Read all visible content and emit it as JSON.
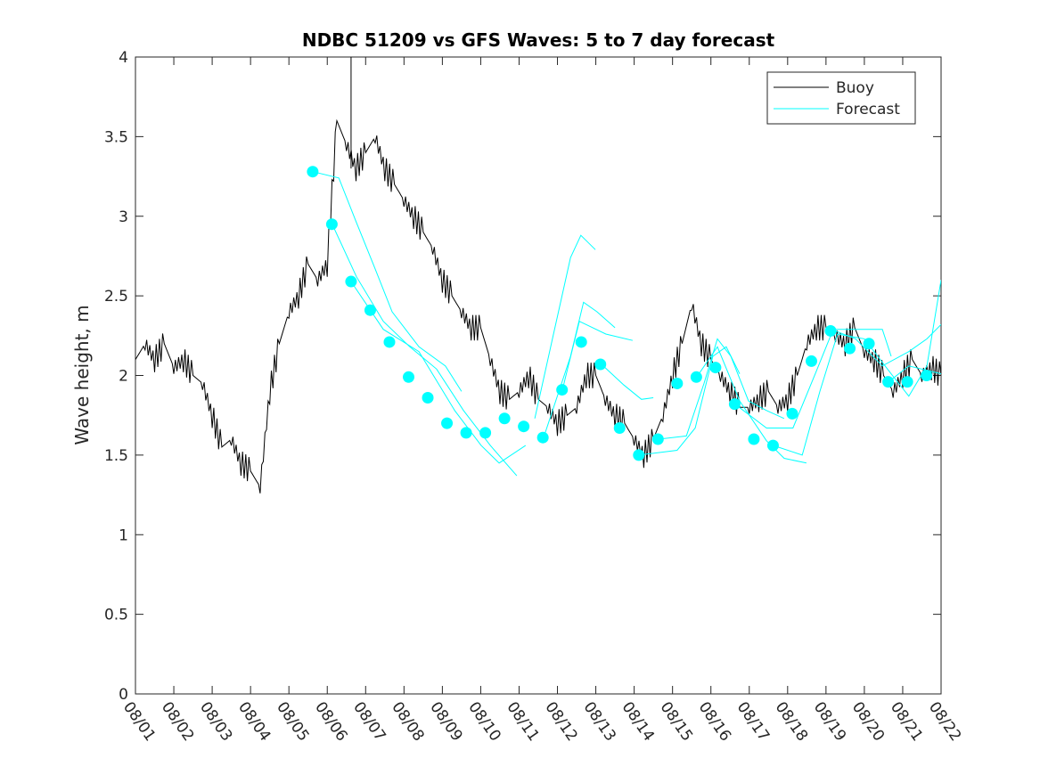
{
  "chart_data": {
    "type": "line",
    "title": "NDBC 51209 vs GFS Waves: 5 to 7 day forecast",
    "xlabel": "",
    "ylabel": "Wave height, m",
    "xlim": [
      0,
      21
    ],
    "ylim": [
      0,
      4
    ],
    "x_unit": "days since 08/01",
    "xtick_labels": [
      "08/01",
      "08/02",
      "08/03",
      "08/04",
      "08/05",
      "08/06",
      "08/07",
      "08/08",
      "08/09",
      "08/10",
      "08/11",
      "08/12",
      "08/13",
      "08/14",
      "08/15",
      "08/16",
      "08/17",
      "08/18",
      "08/19",
      "08/20",
      "08/21",
      "08/22"
    ],
    "yticks": [
      0,
      0.5,
      1,
      1.5,
      2,
      2.5,
      3,
      3.5,
      4
    ],
    "ytick_labels": [
      "0",
      "0.5",
      "1",
      "1.5",
      "2",
      "2.5",
      "3",
      "3.5",
      "4"
    ],
    "grid": false,
    "legend": {
      "placement": "top-right",
      "entries": [
        "Buoy",
        "Forecast"
      ]
    },
    "colors": {
      "buoy": "#000000",
      "forecast": "#00ffff"
    },
    "buoy": {
      "name": "Buoy",
      "x": [
        0,
        0.25,
        0.5,
        0.75,
        1,
        1.25,
        1.5,
        1.75,
        2,
        2.25,
        2.5,
        2.75,
        3,
        3.25,
        3.5,
        3.75,
        4,
        4.25,
        4.5,
        4.75,
        5,
        5.25,
        5.5,
        5.75,
        6,
        6.25,
        6.5,
        6.75,
        7,
        7.25,
        7.5,
        7.75,
        8,
        8.25,
        8.5,
        8.75,
        9,
        9.25,
        9.5,
        9.75,
        10,
        10.25,
        10.5,
        10.75,
        11,
        11.25,
        11.5,
        11.75,
        12,
        12.25,
        12.5,
        12.75,
        13,
        13.25,
        13.5,
        13.75,
        14,
        14.25,
        14.5,
        14.75,
        15,
        15.25,
        15.5,
        15.75,
        16,
        16.25,
        16.5,
        16.75,
        17,
        17.25,
        17.5,
        17.75,
        18,
        18.25,
        18.5,
        18.75,
        19,
        19.25,
        19.5,
        19.75,
        20,
        20.25,
        20.5,
        20.75,
        21
      ],
      "y": [
        2.1,
        2.2,
        2.1,
        2.2,
        2.05,
        2.1,
        2.0,
        1.95,
        1.75,
        1.55,
        1.6,
        1.45,
        1.4,
        1.3,
        1.9,
        2.2,
        2.4,
        2.5,
        2.7,
        2.6,
        2.7,
        3.6,
        3.45,
        3.3,
        3.4,
        3.5,
        3.3,
        3.2,
        3.1,
        3.0,
        2.9,
        2.8,
        2.6,
        2.5,
        2.4,
        2.3,
        2.3,
        2.1,
        1.9,
        1.85,
        1.9,
        2.0,
        1.85,
        1.8,
        1.7,
        1.75,
        1.8,
        2.0,
        2.0,
        1.85,
        1.75,
        1.7,
        1.6,
        1.5,
        1.6,
        1.75,
        2.0,
        2.2,
        2.45,
        2.2,
        2.1,
        2.0,
        1.9,
        1.8,
        1.8,
        1.85,
        1.9,
        1.8,
        1.85,
        2.0,
        2.2,
        2.3,
        2.3,
        2.25,
        2.2,
        2.3,
        2.15,
        2.1,
        2.0,
        1.9,
        2.0,
        2.1,
        2.0,
        2.05,
        2.0
      ]
    },
    "forecast_points": {
      "x": [
        4.62,
        5.12,
        5.62,
        6.12,
        6.62,
        7.12,
        7.62,
        8.12,
        8.62,
        9.12,
        9.62,
        10.12,
        10.62,
        11.12,
        11.62,
        12.12,
        12.62,
        13.12,
        13.62,
        14.12,
        14.62,
        15.12,
        15.62,
        16.12,
        16.62,
        17.12,
        17.62,
        18.12,
        18.62,
        19.12,
        19.62,
        20.12,
        20.62
      ],
      "y": [
        3.28,
        2.95,
        2.59,
        2.41,
        2.21,
        1.99,
        1.86,
        1.7,
        1.64,
        1.64,
        1.73,
        1.68,
        1.61,
        1.91,
        2.21,
        2.07,
        1.67,
        1.5,
        1.6,
        1.95,
        1.99,
        2.05,
        1.82,
        1.6,
        1.56,
        1.76,
        2.09,
        2.28,
        2.17,
        2.2,
        1.96,
        1.96,
        2.0
      ]
    },
    "forecast_series": [
      {
        "x": [
          4.62,
          5.3,
          5.76,
          6.23,
          6.69,
          7.39,
          8.08,
          8.5
        ],
        "y": [
          3.28,
          3.24,
          2.96,
          2.68,
          2.4,
          2.18,
          2.06,
          1.9
        ]
      },
      {
        "x": [
          5.13,
          5.76,
          6.46,
          7.15,
          7.85,
          8.55,
          9.25,
          9.94
        ],
        "y": [
          2.95,
          2.62,
          2.34,
          2.18,
          2.04,
          1.78,
          1.56,
          1.37
        ]
      },
      {
        "x": [
          5.62,
          6.46,
          7.39,
          8.32,
          9.01,
          9.48,
          10.17
        ],
        "y": [
          2.59,
          2.29,
          2.15,
          1.78,
          1.56,
          1.45,
          1.56
        ]
      },
      {
        "x": [
          10.41,
          10.87,
          11.34,
          11.61,
          11.99
        ],
        "y": [
          1.73,
          2.23,
          2.74,
          2.88,
          2.79
        ]
      },
      {
        "x": [
          10.64,
          11.34,
          11.68,
          12.03,
          12.5
        ],
        "y": [
          1.61,
          2.12,
          2.46,
          2.4,
          2.3
        ]
      },
      {
        "x": [
          11.13,
          11.57,
          12.26,
          12.96
        ],
        "y": [
          1.91,
          2.34,
          2.26,
          2.22
        ]
      },
      {
        "x": [
          12.15,
          12.73,
          13.19,
          13.5
        ],
        "y": [
          2.07,
          1.94,
          1.85,
          1.86
        ]
      },
      {
        "x": [
          13.12,
          14.12,
          14.59,
          15.05,
          15.4,
          15.75
        ],
        "y": [
          1.5,
          1.53,
          1.67,
          2.12,
          2.18,
          2.01
        ]
      },
      {
        "x": [
          13.64,
          14.36,
          14.82,
          15.17,
          15.52,
          15.98,
          16.45,
          16.91
        ],
        "y": [
          1.6,
          1.62,
          1.95,
          2.23,
          2.12,
          1.84,
          1.78,
          1.73
        ]
      },
      {
        "x": [
          14.63,
          15.17,
          15.75,
          16.45,
          16.91,
          17.49
        ],
        "y": [
          1.99,
          2.18,
          1.84,
          1.59,
          1.48,
          1.45
        ]
      },
      {
        "x": [
          15.63,
          16.45,
          17.14,
          17.72,
          18.19,
          18.77,
          19.47,
          19.7
        ],
        "y": [
          1.82,
          1.67,
          1.67,
          2.01,
          2.29,
          2.29,
          2.29,
          2.12
        ]
      },
      {
        "x": [
          16.63,
          17.38,
          17.84,
          18.3,
          19.0,
          19.7,
          20.16,
          20.63,
          21.0
        ],
        "y": [
          1.56,
          1.5,
          1.9,
          2.26,
          2.23,
          2.01,
          1.87,
          2.06,
          2.6
        ]
      },
      {
        "x": [
          18.14,
          18.77,
          19.47,
          20.16,
          20.63,
          21.0
        ],
        "y": [
          2.29,
          2.23,
          2.06,
          2.15,
          2.23,
          2.32
        ]
      },
      {
        "x": [
          19.63,
          20.16,
          21.0
        ],
        "y": [
          1.96,
          2.06,
          2.01
        ]
      }
    ]
  }
}
